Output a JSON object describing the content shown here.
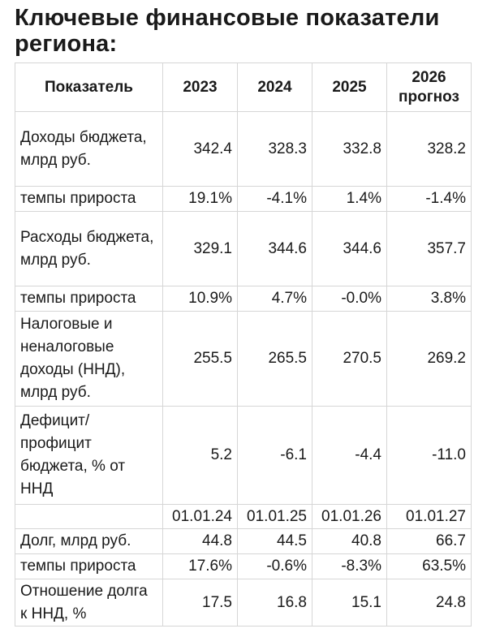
{
  "title": "Ключевые финансовые показатели региона:",
  "table": {
    "headers": [
      "Показатель",
      "2023",
      "2024",
      "2025",
      "2026 прогноз"
    ],
    "rows": [
      {
        "label": "Доходы бюджета, млрд руб.",
        "values": [
          "342.4",
          "328.3",
          "332.8",
          "328.2"
        ]
      },
      {
        "label": "темпы прироста",
        "values": [
          "19.1%",
          "-4.1%",
          "1.4%",
          "-1.4%"
        ]
      },
      {
        "label": "Расходы бюджета, млрд руб.",
        "values": [
          "329.1",
          "344.6",
          "344.6",
          "357.7"
        ]
      },
      {
        "label": "темпы прироста",
        "values": [
          "10.9%",
          "4.7%",
          "-0.0%",
          "3.8%"
        ]
      },
      {
        "label": "Налоговые и неналоговые доходы (ННД), млрд руб.",
        "values": [
          "255.5",
          "265.5",
          "270.5",
          "269.2"
        ]
      },
      {
        "label": "Дефицит/ профицит бюджета, % от ННД",
        "values": [
          "5.2",
          "-6.1",
          "-4.4",
          "-11.0"
        ]
      },
      {
        "label": "",
        "values": [
          "01.01.24",
          "01.01.25",
          "01.01.26",
          "01.01.27"
        ]
      },
      {
        "label": "Долг, млрд руб.",
        "values": [
          "44.8",
          "44.5",
          "40.8",
          "66.7"
        ]
      },
      {
        "label": "темпы прироста",
        "values": [
          "17.6%",
          "-0.6%",
          "-8.3%",
          "63.5%"
        ]
      },
      {
        "label": "Отношение долга к ННД, %",
        "values": [
          "17.5",
          "16.8",
          "15.1",
          "24.8"
        ]
      }
    ]
  }
}
